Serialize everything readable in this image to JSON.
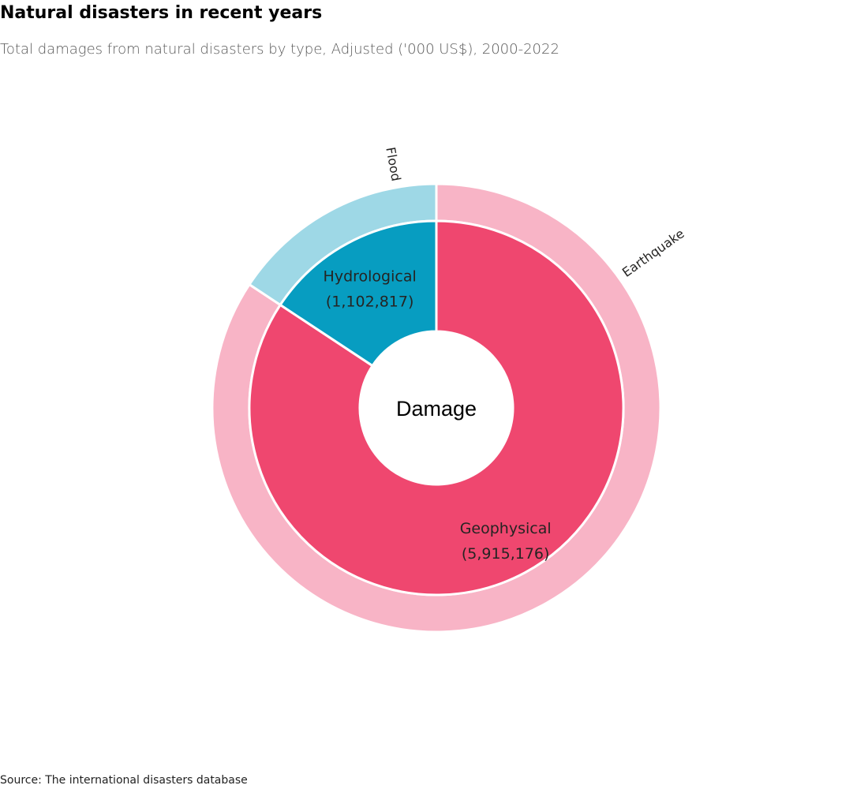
{
  "title": "Natural disasters in recent years",
  "subtitle": "Total damages from natural disasters by type, Adjusted ('000 US$), 2000-2022",
  "source": "Source: The international disasters database",
  "chart_data": {
    "type": "pie",
    "center_label": "Damage",
    "inner_ring": {
      "slices": [
        {
          "label": "Geophysical",
          "value": 5915176,
          "value_label": "(5,915,176)",
          "color": "#ef476f"
        },
        {
          "label": "Hydrological",
          "value": 1102817,
          "value_label": "(1,102,817)",
          "color": "#079dc1"
        }
      ]
    },
    "outer_ring": {
      "slices": [
        {
          "label": "Earthquake",
          "parent": "Geophysical",
          "value": 5915176,
          "color": "#f8b4c6"
        },
        {
          "label": "Flood",
          "parent": "Hydrological",
          "value": 1102817,
          "color": "#9ed8e6"
        }
      ]
    }
  }
}
